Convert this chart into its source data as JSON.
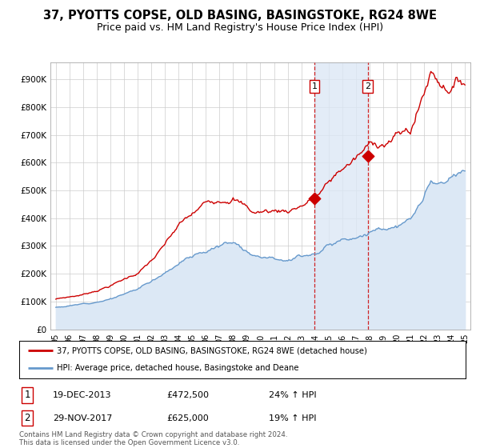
{
  "title": "37, PYOTTS COPSE, OLD BASING, BASINGSTOKE, RG24 8WE",
  "subtitle": "Price paid vs. HM Land Registry's House Price Index (HPI)",
  "ylabel_ticks": [
    "£0",
    "£100K",
    "£200K",
    "£300K",
    "£400K",
    "£500K",
    "£600K",
    "£700K",
    "£800K",
    "£900K"
  ],
  "ytick_values": [
    0,
    100000,
    200000,
    300000,
    400000,
    500000,
    600000,
    700000,
    800000,
    900000
  ],
  "ylim": [
    0,
    960000
  ],
  "red_color": "#cc0000",
  "blue_color": "#6699cc",
  "blue_fill_color": "#dce8f5",
  "transaction1_year": 2013.958,
  "transaction1_price": 472500,
  "transaction1_date": "19-DEC-2013",
  "transaction1_hpi": "24% ↑ HPI",
  "transaction2_year": 2017.875,
  "transaction2_price": 625000,
  "transaction2_date": "29-NOV-2017",
  "transaction2_hpi": "19% ↑ HPI",
  "legend1": "37, PYOTTS COPSE, OLD BASING, BASINGSTOKE, RG24 8WE (detached house)",
  "legend2": "HPI: Average price, detached house, Basingstoke and Deane",
  "footer": "Contains HM Land Registry data © Crown copyright and database right 2024.\nThis data is licensed under the Open Government Licence v3.0.",
  "title_fontsize": 10.5,
  "subtitle_fontsize": 9,
  "start_year": 1995,
  "end_year": 2025
}
